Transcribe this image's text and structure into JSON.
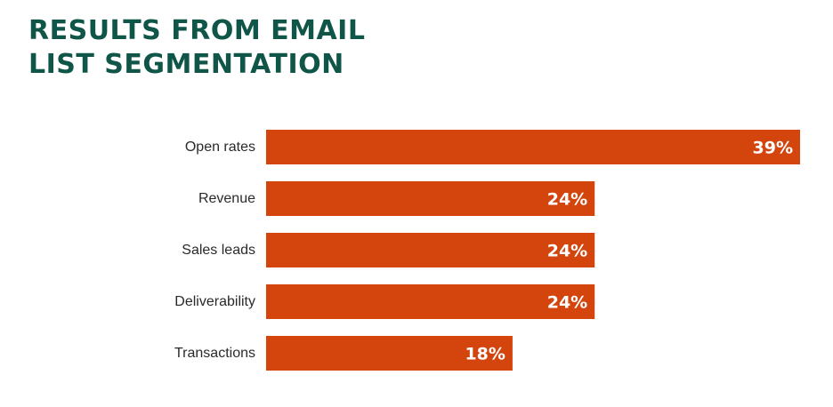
{
  "title_lines": [
    "RESULTS FROM EMAIL",
    "LIST SEGMENTATION"
  ],
  "colors": {
    "title": "#0f5548",
    "bar": "#d4450e",
    "label": "#2a2a2a",
    "value_text": "#ffffff"
  },
  "chart_data": {
    "type": "bar",
    "orientation": "horizontal",
    "title": "RESULTS FROM EMAIL LIST SEGMENTATION",
    "categories": [
      "Open rates",
      "Revenue",
      "Sales leads",
      "Deliverability",
      "Transactions"
    ],
    "values": [
      39,
      24,
      24,
      24,
      18
    ],
    "value_labels": [
      "39%",
      "24%",
      "24%",
      "24%",
      "18%"
    ],
    "xlim": [
      0,
      39
    ],
    "grid": false,
    "legend": "none"
  }
}
